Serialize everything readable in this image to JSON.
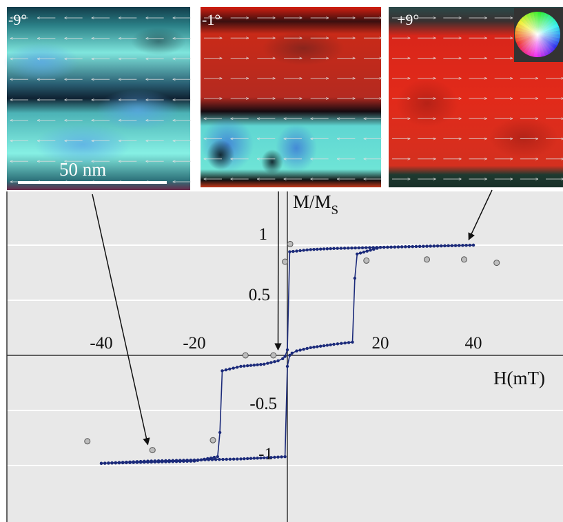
{
  "panels": [
    {
      "label": "-9°",
      "theme": "cyan",
      "arrow_dir": "left",
      "points_to_H": -30,
      "points_to_M": -0.86
    },
    {
      "label": "-1°",
      "theme": "mixed",
      "arrow_dir": "mixed",
      "points_to_H": -2,
      "points_to_M": 0.0
    },
    {
      "label": "+9°",
      "theme": "red",
      "arrow_dir": "right",
      "points_to_H": 39,
      "points_to_M": 1.0
    }
  ],
  "scale_bar": {
    "label": "50 nm"
  },
  "colors": {
    "loop": "#1b2a7a",
    "marker_fill": "#bdbdbd",
    "plot_bg": "#e8e8e8",
    "grid": "#ffffff",
    "axis": "#333333"
  },
  "chart_data": {
    "type": "line",
    "xlabel": "H(mT)",
    "ylabel_main": "M/M",
    "ylabel_sub": "S",
    "xlim": [
      -50,
      50
    ],
    "ylim": [
      -1.2,
      1.42
    ],
    "x_ticks": [
      -40,
      -20,
      20,
      40
    ],
    "x_tick_labels": [
      "-40",
      "-20",
      "20",
      "40"
    ],
    "y_ticks": [
      1,
      0.5,
      -0.5,
      -1
    ],
    "y_tick_labels": [
      "1",
      "0.5",
      "-0.5",
      "-1"
    ],
    "gridlines_y": [
      1,
      0.5,
      -0.5,
      -1
    ],
    "grid": true,
    "series": [
      {
        "style": "line-with-dots",
        "x": [
          -40,
          -30,
          -20,
          -15,
          -14.5,
          -14,
          -10,
          -5,
          -2,
          -1,
          -0.5,
          0,
          0.5,
          5,
          10,
          20,
          30,
          40
        ],
        "y": [
          -0.98,
          -0.97,
          -0.96,
          -0.92,
          -0.7,
          -0.14,
          -0.1,
          -0.08,
          -0.05,
          -0.03,
          -0.01,
          0.05,
          0.94,
          0.96,
          0.97,
          0.98,
          0.99,
          1.0
        ]
      },
      {
        "style": "line-with-dots",
        "x": [
          40,
          30,
          20,
          15,
          14.5,
          14,
          10,
          5,
          2,
          1,
          0.5,
          0,
          -0.5,
          -5,
          -10,
          -20,
          -30,
          -40
        ],
        "y": [
          1.0,
          0.99,
          0.98,
          0.92,
          0.7,
          0.12,
          0.1,
          0.07,
          0.04,
          0.02,
          0.0,
          -0.1,
          -0.92,
          -0.93,
          -0.94,
          -0.95,
          -0.96,
          -0.98
        ]
      },
      {
        "style": "markers",
        "x": [
          -43,
          -29,
          -16,
          -9,
          -3,
          -0.5,
          0.6,
          17,
          30,
          38,
          45
        ],
        "y": [
          -0.78,
          -0.86,
          -0.77,
          0.0,
          0.0,
          0.85,
          1.01,
          0.86,
          0.87,
          0.87,
          0.84
        ]
      }
    ]
  }
}
